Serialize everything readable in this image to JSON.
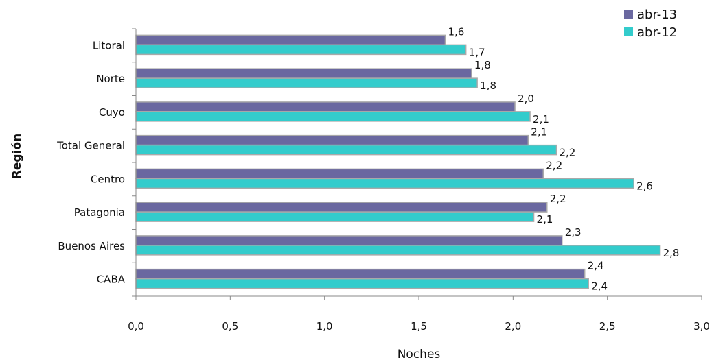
{
  "chart_data": {
    "type": "bar",
    "orientation": "horizontal",
    "categories": [
      "Litoral",
      "Norte",
      "Cuyo",
      "Total General",
      "Centro",
      "Patagonia",
      "Buenos Aires",
      "CABA"
    ],
    "series": [
      {
        "name": "abr-13",
        "color": "#6a68a0",
        "values": [
          1.64,
          1.78,
          2.01,
          2.08,
          2.16,
          2.18,
          2.26,
          2.38
        ],
        "labels": [
          "1,6",
          "1,8",
          "2,0",
          "2,1",
          "2,2",
          "2,2",
          "2,3",
          "2,4"
        ]
      },
      {
        "name": "abr-12",
        "color": "#33cccc",
        "values": [
          1.75,
          1.81,
          2.09,
          2.23,
          2.64,
          2.11,
          2.78,
          2.4
        ],
        "labels": [
          "1,7",
          "1,8",
          "2,1",
          "2,2",
          "2,6",
          "2,1",
          "2,8",
          "2,4"
        ]
      }
    ],
    "xlim": [
      0,
      3
    ],
    "xticks": [
      0,
      0.5,
      1,
      1.5,
      2,
      2.5,
      3
    ],
    "xtick_labels": [
      "0,0",
      "0,5",
      "1,0",
      "1,5",
      "2,0",
      "2,5",
      "3,0"
    ],
    "xlabel": "Noches",
    "ylabel": "Región",
    "legend_position": "top-right",
    "grid": false
  }
}
